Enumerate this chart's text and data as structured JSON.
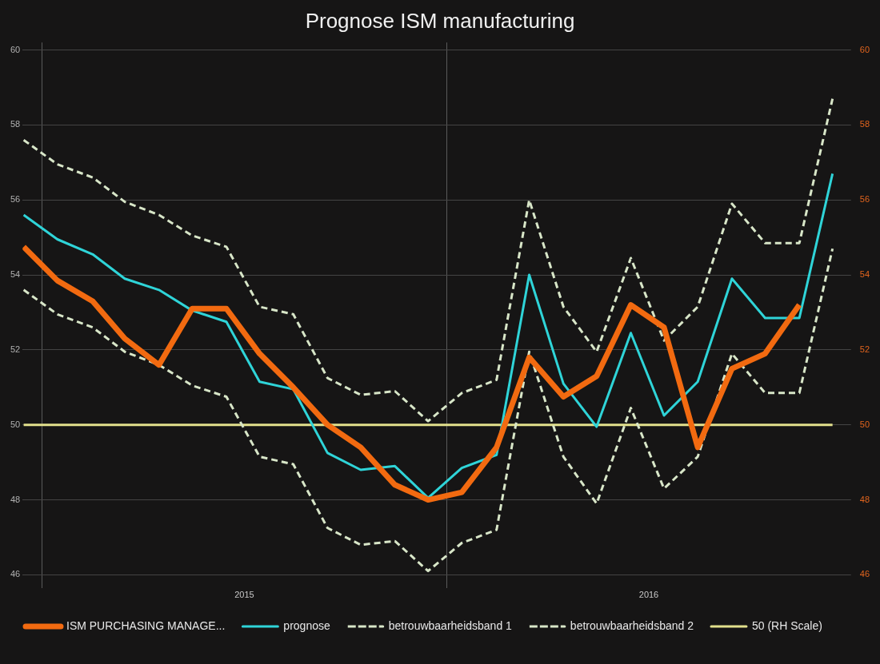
{
  "chart_data": {
    "type": "line",
    "title": "Prognose ISM manufacturing",
    "x": [
      "2014-12-15",
      "2015-01-15",
      "2015-02-15",
      "2015-03-15",
      "2015-04-15",
      "2015-05-15",
      "2015-06-15",
      "2015-07-15",
      "2015-08-15",
      "2015-09-15",
      "2015-10-15",
      "2015-11-15",
      "2015-12-15",
      "2016-01-15",
      "2016-02-15",
      "2016-03-15",
      "2016-04-15",
      "2016-05-15",
      "2016-06-15",
      "2016-07-15",
      "2016-08-15",
      "2016-09-15",
      "2016-10-15",
      "2016-11-15",
      "2016-12-15"
    ],
    "xlim": [
      "2014-12-14",
      "2017-01-01"
    ],
    "xticks": [
      {
        "value": "2015-01-01",
        "label": null
      },
      {
        "value": "2015-07-01",
        "label": "2015"
      },
      {
        "value": "2016-01-01",
        "label": null
      },
      {
        "value": "2016-07-01",
        "label": "2016"
      }
    ],
    "ylim": [
      45.65,
      60.2
    ],
    "yticks": [
      46,
      48,
      50,
      52,
      54,
      56,
      58,
      60
    ],
    "y2lim": [
      45.65,
      60.2
    ],
    "y2ticks": [
      46,
      48,
      50,
      52,
      54,
      56,
      58,
      60
    ],
    "grid": true,
    "legend": "bottom",
    "marker": "none",
    "series": [
      {
        "name": "ISM PURCHASING MANAGE...",
        "color": "#f26a10",
        "values": [
          54.75,
          53.85,
          53.3,
          52.3,
          51.6,
          53.1,
          53.1,
          51.9,
          51.0,
          50.0,
          49.4,
          48.4,
          48.0,
          48.2,
          49.4,
          51.8,
          50.75,
          51.3,
          53.2,
          52.6,
          49.4,
          51.5,
          51.9,
          53.2,
          null
        ]
      },
      {
        "name": "prognose",
        "color": "#2fd4d8",
        "values": [
          55.6,
          54.95,
          54.55,
          53.9,
          53.6,
          53.05,
          52.75,
          51.15,
          50.95,
          49.25,
          48.8,
          48.9,
          48.05,
          48.85,
          49.2,
          54.0,
          51.1,
          49.95,
          52.45,
          50.25,
          51.15,
          53.9,
          52.85,
          52.85,
          56.7
        ]
      },
      {
        "name": "betrouwbaarheidsband 1",
        "color": "#d8e6c8",
        "line_style": "dashed",
        "values": [
          57.6,
          56.95,
          56.6,
          55.95,
          55.6,
          55.05,
          54.75,
          53.15,
          52.95,
          51.25,
          50.8,
          50.9,
          50.1,
          50.85,
          51.2,
          56.0,
          53.15,
          51.95,
          54.45,
          52.25,
          53.15,
          55.9,
          54.85,
          54.85,
          58.7
        ]
      },
      {
        "name": "betrouwbaarheidsband 2",
        "color": "#d8e6c8",
        "line_style": "dashed",
        "values": [
          53.6,
          52.95,
          52.6,
          51.95,
          51.6,
          51.05,
          50.75,
          49.15,
          48.95,
          47.25,
          46.8,
          46.9,
          46.1,
          46.85,
          47.2,
          51.95,
          49.15,
          47.9,
          50.45,
          48.3,
          49.15,
          51.9,
          50.85,
          50.85,
          54.7
        ]
      },
      {
        "name": "50 (RH Scale)",
        "color": "#e2e08c",
        "axis": "y2",
        "values": [
          50,
          50,
          50,
          50,
          50,
          50,
          50,
          50,
          50,
          50,
          50,
          50,
          50,
          50,
          50,
          50,
          50,
          50,
          50,
          50,
          50,
          50,
          50,
          50,
          50
        ]
      }
    ]
  }
}
